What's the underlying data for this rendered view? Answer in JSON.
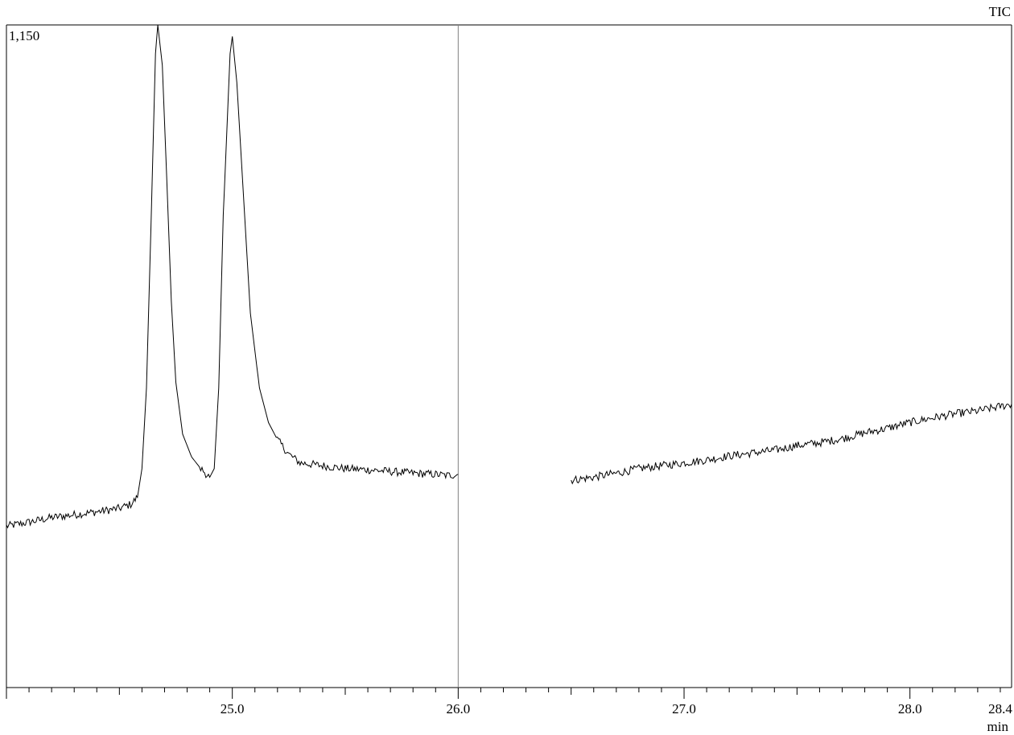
{
  "chart_data": {
    "type": "line",
    "title": "",
    "trace_label": "TIC",
    "xlabel": "min",
    "ylabel": "",
    "y_max_label": "1,150",
    "xlim": [
      24.0,
      28.45
    ],
    "ylim": [
      0,
      1150
    ],
    "x_ticks": [
      25.0,
      26.0,
      27.0,
      28.0,
      28.4
    ],
    "x_tick_labels": [
      "25.0",
      "26.0",
      "27.0",
      "28.0",
      "28.4"
    ],
    "minor_tick_step": 0.1,
    "marker_line_x": 26.0,
    "grid": false,
    "colors": {
      "trace": "#000000",
      "marker": "#808080"
    },
    "series": [
      {
        "segments": [
          [
            [
              24.0,
              280
            ],
            [
              24.1,
              287
            ],
            [
              24.2,
              295
            ],
            [
              24.3,
              300
            ],
            [
              24.4,
              305
            ],
            [
              24.5,
              311
            ],
            [
              24.55,
              318
            ],
            [
              24.58,
              330
            ],
            [
              24.6,
              380
            ],
            [
              24.62,
              520
            ],
            [
              24.64,
              800
            ],
            [
              24.66,
              1100
            ],
            [
              24.67,
              1150
            ],
            [
              24.69,
              1080
            ],
            [
              24.71,
              880
            ],
            [
              24.73,
              670
            ],
            [
              24.75,
              530
            ],
            [
              24.78,
              440
            ],
            [
              24.82,
              400
            ],
            [
              24.86,
              380
            ],
            [
              24.9,
              365
            ],
            [
              24.92,
              380
            ],
            [
              24.94,
              520
            ],
            [
              24.96,
              820
            ],
            [
              24.99,
              1100
            ],
            [
              25.0,
              1130
            ],
            [
              25.02,
              1050
            ],
            [
              25.05,
              850
            ],
            [
              25.08,
              650
            ],
            [
              25.12,
              520
            ],
            [
              25.16,
              460
            ],
            [
              25.2,
              430
            ],
            [
              25.25,
              405
            ],
            [
              25.3,
              390
            ],
            [
              25.4,
              385
            ],
            [
              25.5,
              380
            ],
            [
              25.6,
              378
            ],
            [
              25.7,
              375
            ],
            [
              25.8,
              372
            ],
            [
              25.9,
              370
            ],
            [
              25.95,
              368
            ],
            [
              26.0,
              370
            ]
          ],
          [
            [
              26.5,
              360
            ],
            [
              26.6,
              365
            ],
            [
              26.7,
              372
            ],
            [
              26.8,
              380
            ],
            [
              26.9,
              385
            ],
            [
              27.0,
              390
            ],
            [
              27.1,
              395
            ],
            [
              27.2,
              402
            ],
            [
              27.3,
              407
            ],
            [
              27.4,
              412
            ],
            [
              27.5,
              420
            ],
            [
              27.6,
              425
            ],
            [
              27.7,
              432
            ],
            [
              27.8,
              442
            ],
            [
              27.9,
              450
            ],
            [
              28.0,
              460
            ],
            [
              28.1,
              468
            ],
            [
              28.2,
              475
            ],
            [
              28.3,
              480
            ],
            [
              28.4,
              488
            ],
            [
              28.45,
              492
            ]
          ]
        ]
      }
    ]
  }
}
